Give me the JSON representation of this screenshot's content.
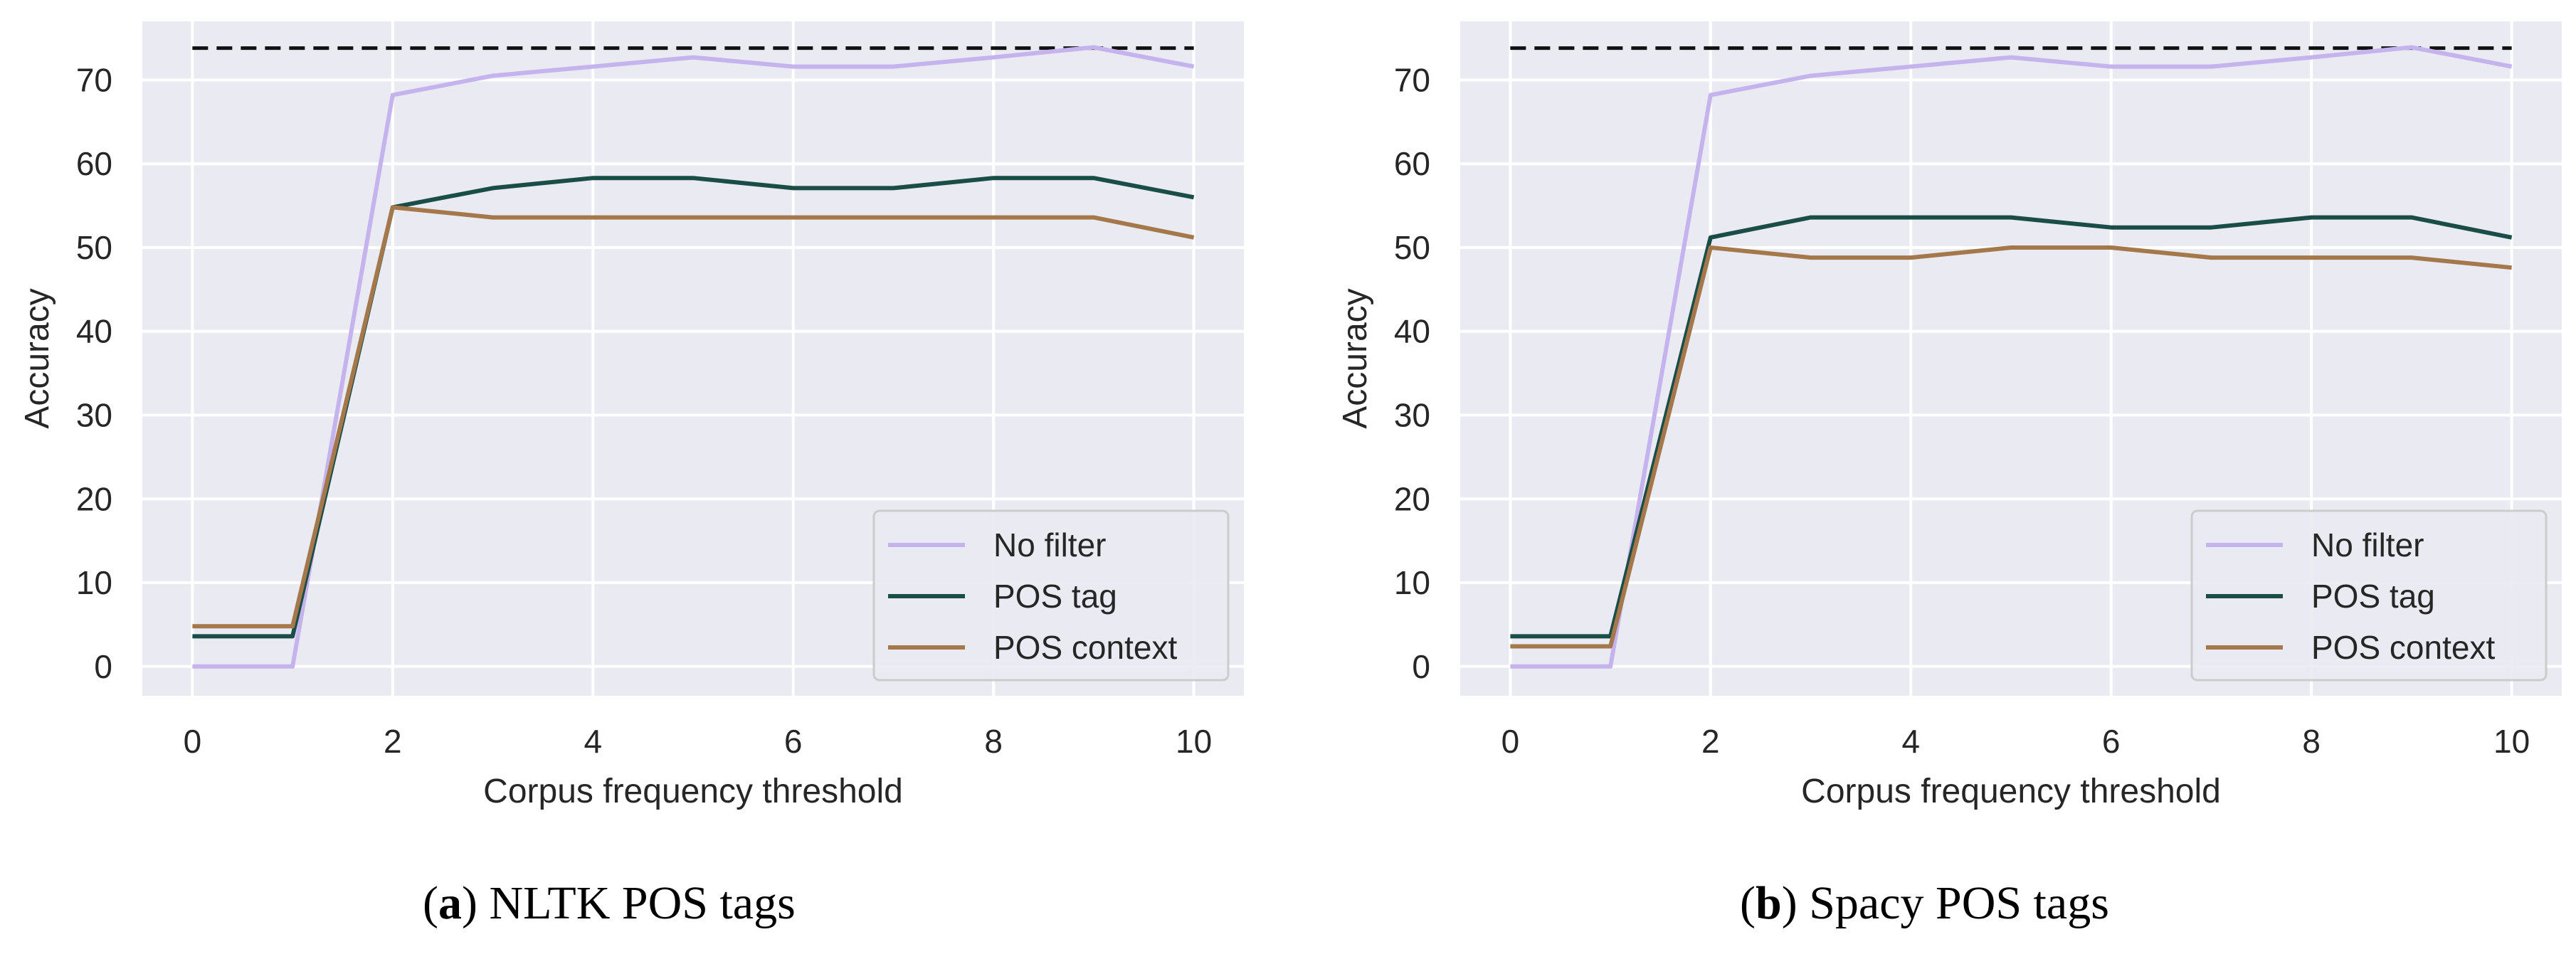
{
  "chart_data": [
    {
      "type": "line",
      "caption_letter": "a",
      "caption_text": "NLTK POS tags",
      "xlabel": "Corpus frequency threshold",
      "ylabel": "Accuracy",
      "xlim": [
        -0.5,
        10.5
      ],
      "ylim": [
        -3.5,
        77
      ],
      "xticks": [
        0,
        2,
        4,
        6,
        8,
        10
      ],
      "yticks": [
        0,
        10,
        20,
        30,
        40,
        50,
        60,
        70
      ],
      "grid": true,
      "legend_position": "lower-right",
      "reference_line": {
        "style": "dashed",
        "color": "#111111",
        "y": 73.8
      },
      "x": [
        0,
        1,
        2,
        3,
        4,
        5,
        6,
        7,
        8,
        9,
        10
      ],
      "series": [
        {
          "name": "No filter",
          "color": "#c5b3ee",
          "values": [
            0,
            0,
            68.2,
            70.5,
            71.6,
            72.7,
            71.6,
            71.6,
            72.7,
            73.9,
            71.6
          ]
        },
        {
          "name": "POS tag",
          "color": "#1a4d47",
          "values": [
            3.6,
            3.6,
            54.8,
            57.1,
            58.3,
            58.3,
            57.1,
            57.1,
            58.3,
            58.3,
            56.0
          ]
        },
        {
          "name": "POS context",
          "color": "#a4784b",
          "values": [
            4.8,
            4.8,
            54.8,
            53.6,
            53.6,
            53.6,
            53.6,
            53.6,
            53.6,
            53.6,
            51.2
          ]
        }
      ]
    },
    {
      "type": "line",
      "caption_letter": "b",
      "caption_text": "Spacy POS tags",
      "xlabel": "Corpus frequency threshold",
      "ylabel": "Accuracy",
      "xlim": [
        -0.5,
        10.5
      ],
      "ylim": [
        -3.5,
        77
      ],
      "xticks": [
        0,
        2,
        4,
        6,
        8,
        10
      ],
      "yticks": [
        0,
        10,
        20,
        30,
        40,
        50,
        60,
        70
      ],
      "grid": true,
      "legend_position": "lower-right",
      "reference_line": {
        "style": "dashed",
        "color": "#111111",
        "y": 73.8
      },
      "x": [
        0,
        1,
        2,
        3,
        4,
        5,
        6,
        7,
        8,
        9,
        10
      ],
      "series": [
        {
          "name": "No filter",
          "color": "#c5b3ee",
          "values": [
            0,
            0,
            68.2,
            70.5,
            71.6,
            72.7,
            71.6,
            71.6,
            72.7,
            73.9,
            71.6
          ]
        },
        {
          "name": "POS tag",
          "color": "#1a4d47",
          "values": [
            3.6,
            3.6,
            51.2,
            53.6,
            53.6,
            53.6,
            52.4,
            52.4,
            53.6,
            53.6,
            51.2
          ]
        },
        {
          "name": "POS context",
          "color": "#a4784b",
          "values": [
            2.4,
            2.4,
            50.0,
            48.8,
            48.8,
            50.0,
            50.0,
            48.8,
            48.8,
            48.8,
            47.6
          ]
        }
      ]
    }
  ]
}
